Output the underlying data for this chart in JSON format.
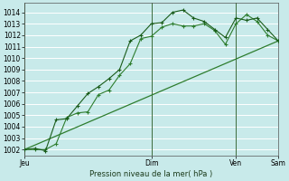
{
  "background_color": "#c8eaea",
  "grid_color": "#a8d8d8",
  "line_color1": "#1a5c1a",
  "line_color2": "#2e7d2e",
  "line_color3": "#2e7d2e",
  "ylabel": "Pression niveau de la mer( hPa )",
  "ylim": [
    1001.5,
    1014.8
  ],
  "yticks": [
    1002,
    1003,
    1004,
    1005,
    1006,
    1007,
    1008,
    1009,
    1010,
    1011,
    1012,
    1013,
    1014
  ],
  "xlim": [
    0,
    144
  ],
  "day_vlines": [
    0,
    72,
    120,
    144
  ],
  "xtick_positions": [
    0,
    72,
    120,
    144
  ],
  "xtick_labels": [
    "Jeu",
    "Dim",
    "Ven",
    "Sam"
  ],
  "series1_x": [
    0,
    6,
    12,
    18,
    24,
    30,
    36,
    42,
    48,
    54,
    60,
    66,
    72,
    78,
    84,
    90,
    96,
    102,
    108,
    114,
    120,
    126,
    132,
    138,
    144
  ],
  "series1_y": [
    1002.0,
    1002.1,
    1001.9,
    1004.6,
    1004.7,
    1005.8,
    1006.9,
    1007.5,
    1008.2,
    1009.0,
    1011.5,
    1012.0,
    1013.0,
    1013.1,
    1014.0,
    1014.2,
    1013.5,
    1013.2,
    1012.5,
    1011.8,
    1013.5,
    1013.3,
    1013.5,
    1012.5,
    1011.5
  ],
  "series2_x": [
    0,
    6,
    12,
    18,
    24,
    30,
    36,
    42,
    48,
    54,
    60,
    66,
    72,
    78,
    84,
    90,
    96,
    102,
    108,
    114,
    120,
    126,
    132,
    138,
    144
  ],
  "series2_y": [
    1002.0,
    1002.0,
    1002.0,
    1002.5,
    1004.8,
    1005.2,
    1005.3,
    1006.8,
    1007.2,
    1008.5,
    1009.5,
    1011.7,
    1011.9,
    1012.7,
    1013.0,
    1012.8,
    1012.8,
    1013.0,
    1012.4,
    1011.2,
    1013.0,
    1013.8,
    1013.2,
    1012.0,
    1011.5
  ],
  "series3_x": [
    0,
    144
  ],
  "series3_y": [
    1002.0,
    1011.5
  ]
}
